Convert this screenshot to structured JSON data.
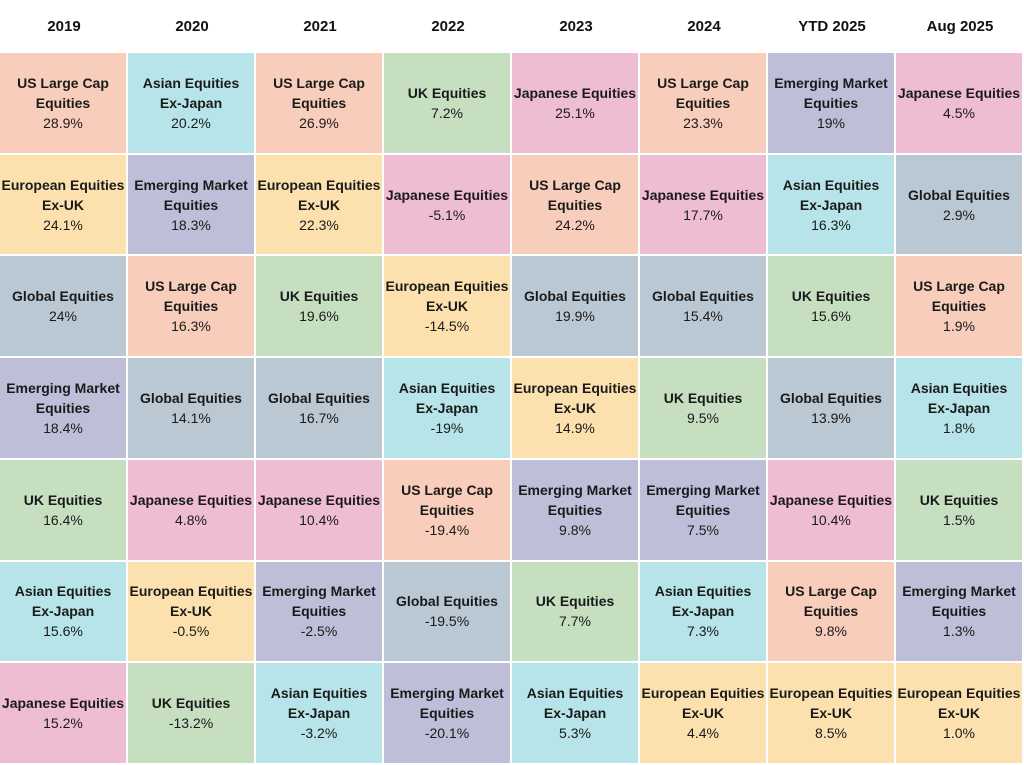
{
  "chart_data": {
    "type": "table",
    "columns": [
      "2019",
      "2020",
      "2021",
      "2022",
      "2023",
      "2024",
      "YTD 2025",
      "Aug 2025"
    ],
    "colors": {
      "US Large Cap": "#f9cdbb",
      "Asian Equities": "#b6e4e8",
      "UK Equities": "#c5dfc0",
      "Japanese Equities": "#eebdd3",
      "Emerging Market": "#bebed9",
      "European Equities": "#fce1af",
      "Global Equities": "#b9c8d3"
    },
    "rows": [
      [
        {
          "line1": "US Large Cap",
          "line2": "Equities",
          "value": "28.9%",
          "cat": "US Large Cap"
        },
        {
          "line1": "Asian Equities",
          "line2": "Ex-Japan",
          "value": "20.2%",
          "cat": "Asian Equities"
        },
        {
          "line1": "US Large Cap",
          "line2": "Equities",
          "value": "26.9%",
          "cat": "US Large Cap"
        },
        {
          "line1": "UK Equities",
          "line2": "",
          "value": "7.2%",
          "cat": "UK Equities"
        },
        {
          "line1": "Japanese Equities",
          "line2": "",
          "value": "25.1%",
          "cat": "Japanese Equities"
        },
        {
          "line1": "US Large Cap",
          "line2": "Equities",
          "value": "23.3%",
          "cat": "US Large Cap"
        },
        {
          "line1": "Emerging Market",
          "line2": "Equities",
          "value": "19%",
          "cat": "Emerging Market"
        },
        {
          "line1": "Japanese Equities",
          "line2": "",
          "value": "4.5%",
          "cat": "Japanese Equities"
        }
      ],
      [
        {
          "line1": "European Equities",
          "line2": "Ex-UK",
          "value": "24.1%",
          "cat": "European Equities"
        },
        {
          "line1": "Emerging Market",
          "line2": "Equities",
          "value": "18.3%",
          "cat": "Emerging Market"
        },
        {
          "line1": "European Equities",
          "line2": "Ex-UK",
          "value": "22.3%",
          "cat": "European Equities"
        },
        {
          "line1": "Japanese Equities",
          "line2": "",
          "value": "-5.1%",
          "cat": "Japanese Equities"
        },
        {
          "line1": "US Large Cap",
          "line2": "Equities",
          "value": "24.2%",
          "cat": "US Large Cap"
        },
        {
          "line1": "Japanese Equities",
          "line2": "",
          "value": "17.7%",
          "cat": "Japanese Equities"
        },
        {
          "line1": "Asian Equities",
          "line2": "Ex-Japan",
          "value": "16.3%",
          "cat": "Asian Equities"
        },
        {
          "line1": "Global Equities",
          "line2": "",
          "value": "2.9%",
          "cat": "Global Equities"
        }
      ],
      [
        {
          "line1": "Global Equities",
          "line2": "",
          "value": "24%",
          "cat": "Global Equities"
        },
        {
          "line1": "US Large Cap",
          "line2": "Equities",
          "value": "16.3%",
          "cat": "US Large Cap"
        },
        {
          "line1": "UK Equities",
          "line2": "",
          "value": "19.6%",
          "cat": "UK Equities"
        },
        {
          "line1": "European Equities",
          "line2": "Ex-UK",
          "value": "-14.5%",
          "cat": "European Equities"
        },
        {
          "line1": "Global Equities",
          "line2": "",
          "value": "19.9%",
          "cat": "Global Equities"
        },
        {
          "line1": "Global Equities",
          "line2": "",
          "value": "15.4%",
          "cat": "Global Equities"
        },
        {
          "line1": "UK Equities",
          "line2": "",
          "value": "15.6%",
          "cat": "UK Equities"
        },
        {
          "line1": "US Large Cap",
          "line2": "Equities",
          "value": "1.9%",
          "cat": "US Large Cap"
        }
      ],
      [
        {
          "line1": "Emerging Market",
          "line2": "Equities",
          "value": "18.4%",
          "cat": "Emerging Market"
        },
        {
          "line1": "Global Equities",
          "line2": "",
          "value": "14.1%",
          "cat": "Global Equities"
        },
        {
          "line1": "Global Equities",
          "line2": "",
          "value": "16.7%",
          "cat": "Global Equities"
        },
        {
          "line1": "Asian Equities",
          "line2": "Ex-Japan",
          "value": "-19%",
          "cat": "Asian Equities"
        },
        {
          "line1": "European Equities",
          "line2": "Ex-UK",
          "value": "14.9%",
          "cat": "European Equities"
        },
        {
          "line1": "UK Equities",
          "line2": "",
          "value": "9.5%",
          "cat": "UK Equities"
        },
        {
          "line1": "Global Equities",
          "line2": "",
          "value": "13.9%",
          "cat": "Global Equities"
        },
        {
          "line1": "Asian Equities",
          "line2": "Ex-Japan",
          "value": "1.8%",
          "cat": "Asian Equities"
        }
      ],
      [
        {
          "line1": "UK Equities",
          "line2": "",
          "value": "16.4%",
          "cat": "UK Equities"
        },
        {
          "line1": "Japanese Equities",
          "line2": "",
          "value": "4.8%",
          "cat": "Japanese Equities"
        },
        {
          "line1": "Japanese Equities",
          "line2": "",
          "value": "10.4%",
          "cat": "Japanese Equities"
        },
        {
          "line1": "US Large Cap",
          "line2": "Equities",
          "value": "-19.4%",
          "cat": "US Large Cap"
        },
        {
          "line1": "Emerging Market",
          "line2": "Equities",
          "value": "9.8%",
          "cat": "Emerging Market"
        },
        {
          "line1": "Emerging Market",
          "line2": "Equities",
          "value": "7.5%",
          "cat": "Emerging Market"
        },
        {
          "line1": "Japanese Equities",
          "line2": "",
          "value": "10.4%",
          "cat": "Japanese Equities"
        },
        {
          "line1": "UK Equities",
          "line2": "",
          "value": "1.5%",
          "cat": "UK Equities"
        }
      ],
      [
        {
          "line1": "Asian Equities",
          "line2": "Ex-Japan",
          "value": "15.6%",
          "cat": "Asian Equities"
        },
        {
          "line1": "European Equities",
          "line2": "Ex-UK",
          "value": "-0.5%",
          "cat": "European Equities"
        },
        {
          "line1": "Emerging Market",
          "line2": "Equities",
          "value": "-2.5%",
          "cat": "Emerging Market"
        },
        {
          "line1": "Global Equities",
          "line2": "",
          "value": "-19.5%",
          "cat": "Global Equities"
        },
        {
          "line1": "UK Equities",
          "line2": "",
          "value": "7.7%",
          "cat": "UK Equities"
        },
        {
          "line1": "Asian Equities",
          "line2": "Ex-Japan",
          "value": "7.3%",
          "cat": "Asian Equities"
        },
        {
          "line1": "US Large Cap",
          "line2": "Equities",
          "value": "9.8%",
          "cat": "US Large Cap"
        },
        {
          "line1": "Emerging Market",
          "line2": "Equities",
          "value": "1.3%",
          "cat": "Emerging Market"
        }
      ],
      [
        {
          "line1": "Japanese Equities",
          "line2": "",
          "value": "15.2%",
          "cat": "Japanese Equities"
        },
        {
          "line1": "UK Equities",
          "line2": "",
          "value": "-13.2%",
          "cat": "UK Equities"
        },
        {
          "line1": "Asian Equities",
          "line2": "Ex-Japan",
          "value": "-3.2%",
          "cat": "Asian Equities"
        },
        {
          "line1": "Emerging Market",
          "line2": "Equities",
          "value": "-20.1%",
          "cat": "Emerging Market"
        },
        {
          "line1": "Asian Equities",
          "line2": "Ex-Japan",
          "value": "5.3%",
          "cat": "Asian Equities"
        },
        {
          "line1": "European Equities",
          "line2": "Ex-UK",
          "value": "4.4%",
          "cat": "European Equities"
        },
        {
          "line1": "European Equities",
          "line2": "Ex-UK",
          "value": "8.5%",
          "cat": "European Equities"
        },
        {
          "line1": "European Equities",
          "line2": "Ex-UK",
          "value": "1.0%",
          "cat": "European Equities"
        }
      ]
    ]
  }
}
